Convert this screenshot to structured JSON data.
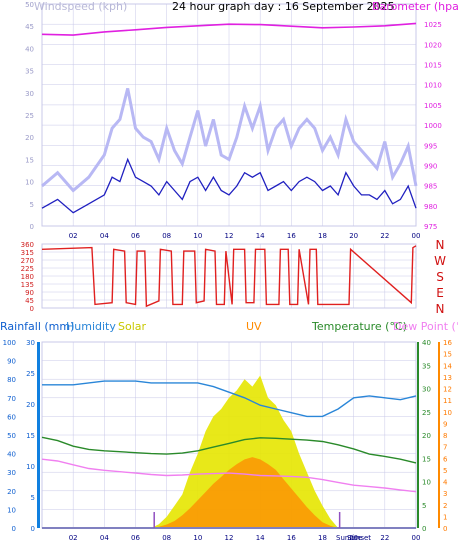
{
  "title": "24 hour graph day : 16 September 2025",
  "colors": {
    "wind_avg": "#2020c0",
    "wind_gust": "#b8b8f4",
    "barometer": "#e020e0",
    "direction": "#e02020",
    "humidity": "#2a86d8",
    "temperature": "#2a8a2a",
    "dew_point": "#f080f0",
    "solar": "#e6e600",
    "uv": "#ff8a00",
    "rain_axis": "#1080e0",
    "grid": "#c8c8e8"
  },
  "x_ticks": [
    "02",
    "04",
    "06",
    "08",
    "10",
    "12",
    "14",
    "16",
    "18",
    "20",
    "22",
    "00"
  ],
  "panel1": {
    "left_label": "Windspeed (kph)",
    "right_label": "Barometer (hpa)",
    "left_ticks": [
      "0",
      "5",
      "10",
      "15",
      "20",
      "25",
      "30",
      "35",
      "40",
      "45",
      "50"
    ],
    "right_ticks": [
      "975",
      "980",
      "985",
      "990",
      "995",
      "1000",
      "1005",
      "1010",
      "1015",
      "1020",
      "1025"
    ]
  },
  "panel2": {
    "left_ticks": [
      "0",
      "45",
      "90",
      "135",
      "180",
      "225",
      "270",
      "315",
      "360"
    ],
    "compass": [
      "N",
      "W",
      "S",
      "E",
      "N"
    ]
  },
  "panel3": {
    "labels": {
      "rainfall": "Rainfall (mm)",
      "humidity": "Humidity",
      "solar": "Solar",
      "uv": "UV",
      "temperature": "Temperature (°C)",
      "dew_point": "Dew Point (°C)"
    },
    "humidity_ticks": [
      "0",
      "10",
      "20",
      "30",
      "40",
      "50",
      "60",
      "70",
      "80",
      "90",
      "100"
    ],
    "rain_ticks": [
      "0",
      "5",
      "10",
      "15",
      "20",
      "25",
      "30"
    ],
    "temp_ticks": [
      "0",
      "5",
      "10",
      "15",
      "20",
      "25",
      "30",
      "35",
      "40"
    ],
    "uv_ticks": [
      "0",
      "1",
      "2",
      "3",
      "4",
      "5",
      "6",
      "7",
      "8",
      "9",
      "10",
      "11",
      "12",
      "13",
      "14",
      "15",
      "16"
    ],
    "sunrise_label": "Sunrise",
    "sunset_label": "Sunset"
  },
  "chart_data": [
    {
      "type": "line",
      "x_unit": "hour of day",
      "series": [
        {
          "name": "Barometer (hpa)",
          "axis": "right",
          "ylim": [
            975,
            1030
          ],
          "x": [
            0,
            2,
            4,
            6,
            8,
            10,
            12,
            14,
            16,
            18,
            20,
            22,
            24
          ],
          "values": [
            1022.5,
            1022.3,
            1023.1,
            1023.6,
            1024.2,
            1024.6,
            1025.0,
            1024.9,
            1024.5,
            1024.1,
            1024.3,
            1024.6,
            1025.2
          ]
        },
        {
          "name": "Windspeed (kph)",
          "axis": "left",
          "ylim": [
            0,
            50
          ],
          "x": [
            0,
            1,
            2,
            3,
            4,
            4.5,
            5,
            5.5,
            6,
            6.5,
            7,
            7.5,
            8,
            8.5,
            9,
            9.5,
            10,
            10.5,
            11,
            11.5,
            12,
            12.5,
            13,
            13.5,
            14,
            14.5,
            15,
            15.5,
            16,
            16.5,
            17,
            17.5,
            18,
            18.5,
            19,
            19.5,
            20,
            20.5,
            21,
            21.5,
            22,
            22.5,
            23,
            23.5,
            24
          ],
          "values": [
            4,
            6,
            3,
            5,
            7,
            11,
            10,
            15,
            11,
            10,
            9,
            7,
            10,
            8,
            6,
            10,
            11,
            8,
            11,
            8,
            7,
            9,
            12,
            11,
            12,
            8,
            9,
            10,
            8,
            10,
            11,
            10,
            8,
            9,
            7,
            12,
            9,
            7,
            7,
            6,
            8,
            5,
            6,
            9,
            4
          ]
        },
        {
          "name": "Gust (kph)",
          "axis": "left",
          "ylim": [
            0,
            50
          ],
          "x": [
            0,
            1,
            2,
            3,
            4,
            4.5,
            5,
            5.5,
            6,
            6.5,
            7,
            7.5,
            8,
            8.5,
            9,
            9.5,
            10,
            10.5,
            11,
            11.5,
            12,
            12.5,
            13,
            13.5,
            14,
            14.5,
            15,
            15.5,
            16,
            16.5,
            17,
            17.5,
            18,
            18.5,
            19,
            19.5,
            20,
            20.5,
            21,
            21.5,
            22,
            22.5,
            23,
            23.5,
            24
          ],
          "values": [
            9,
            12,
            8,
            11,
            16,
            22,
            24,
            31,
            22,
            20,
            19,
            15,
            22,
            17,
            14,
            20,
            26,
            18,
            24,
            16,
            15,
            20,
            27,
            22,
            27,
            17,
            22,
            24,
            18,
            22,
            24,
            22,
            17,
            20,
            16,
            24,
            19,
            17,
            15,
            13,
            19,
            11,
            14,
            18,
            9
          ]
        }
      ]
    },
    {
      "type": "line",
      "title": "Wind direction",
      "ylim": [
        0,
        360
      ],
      "x": [
        0,
        3.2,
        3.4,
        4.5,
        4.6,
        5.3,
        5.4,
        6.0,
        6.1,
        6.6,
        6.7,
        7.5,
        7.6,
        8.3,
        8.4,
        9.0,
        9.1,
        9.8,
        9.9,
        10.4,
        10.5,
        11.1,
        11.2,
        11.7,
        11.8,
        12.2,
        12.3,
        13.0,
        13.1,
        13.6,
        13.7,
        14.3,
        14.4,
        15.2,
        15.3,
        15.8,
        15.9,
        16.4,
        16.5,
        17.1,
        17.2,
        17.6,
        17.7,
        19.7,
        19.8,
        23.7,
        23.8,
        24
      ],
      "values": [
        330,
        340,
        20,
        30,
        330,
        320,
        30,
        20,
        320,
        320,
        10,
        40,
        330,
        320,
        20,
        20,
        320,
        320,
        30,
        40,
        330,
        320,
        20,
        20,
        320,
        20,
        330,
        330,
        30,
        30,
        330,
        330,
        20,
        20,
        330,
        330,
        20,
        20,
        330,
        20,
        330,
        330,
        20,
        20,
        330,
        30,
        340,
        350
      ]
    },
    {
      "type": "line",
      "x_unit": "hour of day",
      "series": [
        {
          "name": "Humidity",
          "axis": "humidity",
          "ylim": [
            0,
            100
          ],
          "x": [
            0,
            1,
            2,
            3,
            4,
            5,
            6,
            7,
            8,
            9,
            10,
            11,
            12,
            13,
            14,
            15,
            16,
            17,
            18,
            19,
            20,
            21,
            22,
            23,
            24
          ],
          "values": [
            77,
            77,
            77,
            78,
            79,
            79,
            79,
            78,
            78,
            78,
            78,
            76,
            73,
            70,
            66,
            64,
            62,
            60,
            60,
            64,
            70,
            71,
            70,
            69,
            71
          ]
        },
        {
          "name": "Temperature (°C)",
          "axis": "temp",
          "ylim": [
            0,
            40
          ],
          "x": [
            0,
            1,
            2,
            3,
            4,
            5,
            6,
            7,
            8,
            9,
            10,
            11,
            12,
            13,
            14,
            15,
            16,
            17,
            18,
            19,
            20,
            21,
            22,
            23,
            24
          ],
          "values": [
            19.5,
            18.8,
            17.6,
            16.9,
            16.6,
            16.4,
            16.2,
            16.0,
            15.9,
            16.1,
            16.6,
            17.4,
            18.2,
            19.0,
            19.4,
            19.3,
            19.1,
            18.9,
            18.6,
            17.9,
            17.0,
            15.9,
            15.4,
            14.8,
            14.0
          ]
        },
        {
          "name": "Dew Point (°C)",
          "axis": "temp",
          "ylim": [
            0,
            40
          ],
          "x": [
            0,
            1,
            2,
            3,
            4,
            5,
            6,
            7,
            8,
            9,
            10,
            11,
            12,
            13,
            14,
            15,
            16,
            17,
            18,
            19,
            20,
            21,
            22,
            23,
            24
          ],
          "values": [
            14.8,
            14.4,
            13.6,
            12.8,
            12.4,
            12.1,
            11.8,
            11.5,
            11.3,
            11.4,
            11.6,
            11.7,
            11.8,
            11.6,
            11.3,
            11.2,
            11.1,
            10.9,
            10.4,
            9.8,
            9.2,
            8.9,
            8.6,
            8.2,
            7.8
          ]
        },
        {
          "name": "Solar",
          "axis": "humidity",
          "ylim": [
            0,
            100
          ],
          "x": [
            7,
            7.5,
            8,
            8.5,
            9,
            9.5,
            10,
            10.5,
            11,
            11.5,
            12,
            12.5,
            13,
            13.5,
            14,
            14.5,
            15,
            15.5,
            16,
            16.5,
            17,
            17.5,
            18,
            18.5,
            19
          ],
          "values": [
            0,
            2,
            6,
            12,
            18,
            30,
            40,
            52,
            60,
            64,
            70,
            74,
            80,
            76,
            82,
            70,
            66,
            58,
            52,
            40,
            30,
            20,
            12,
            5,
            0
          ]
        },
        {
          "name": "UV",
          "axis": "uv",
          "ylim": [
            0,
            16
          ],
          "x": [
            7,
            7.5,
            8,
            8.5,
            9,
            9.5,
            10,
            10.5,
            11,
            11.5,
            12,
            12.5,
            13,
            13.5,
            14,
            14.5,
            15,
            15.5,
            16,
            16.5,
            17,
            17.5,
            18,
            18.5,
            19
          ],
          "values": [
            0,
            0.1,
            0.3,
            0.6,
            1.1,
            1.7,
            2.4,
            3.1,
            3.8,
            4.4,
            5.0,
            5.5,
            5.9,
            6.1,
            5.9,
            5.5,
            5.0,
            4.2,
            3.4,
            2.6,
            1.8,
            1.1,
            0.5,
            0.2,
            0
          ]
        },
        {
          "name": "Rainfall (mm)",
          "axis": "rain",
          "ylim": [
            0,
            30
          ],
          "x": [
            0,
            24
          ],
          "values": [
            0,
            0
          ]
        }
      ]
    }
  ]
}
